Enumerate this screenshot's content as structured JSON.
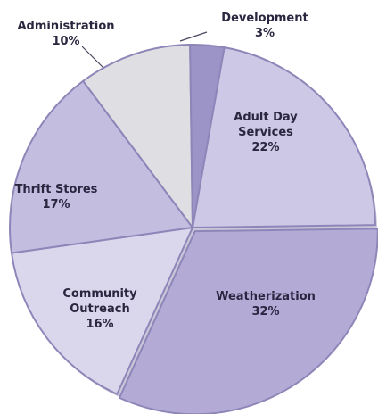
{
  "chart_data": {
    "type": "pie",
    "slices": [
      {
        "label": "Adult Day Services",
        "label_lines": [
          "Adult Day",
          "Services"
        ],
        "value_text": "22%",
        "value": 22,
        "color": "#cdc8e6"
      },
      {
        "label": "Weatherization",
        "label_lines": [
          "Weatherization"
        ],
        "value_text": "32%",
        "value": 32,
        "color": "#b3abd6"
      },
      {
        "label": "Community Outreach",
        "label_lines": [
          "Community",
          "Outreach"
        ],
        "value_text": "16%",
        "value": 16,
        "color": "#dad6ec"
      },
      {
        "label": "Thrift Stores",
        "label_lines": [
          "Thrift Stores"
        ],
        "value_text": "17%",
        "value": 17,
        "color": "#c3bde0"
      },
      {
        "label": "Administration",
        "label_lines": [
          "Administration"
        ],
        "value_text": "10%",
        "value": 10,
        "color": "#dfdfe3"
      },
      {
        "label": "Development",
        "label_lines": [
          "Development"
        ],
        "value_text": "3%",
        "value": 3,
        "color": "#9c93c6"
      }
    ],
    "edge_color": "#8e86b8"
  }
}
